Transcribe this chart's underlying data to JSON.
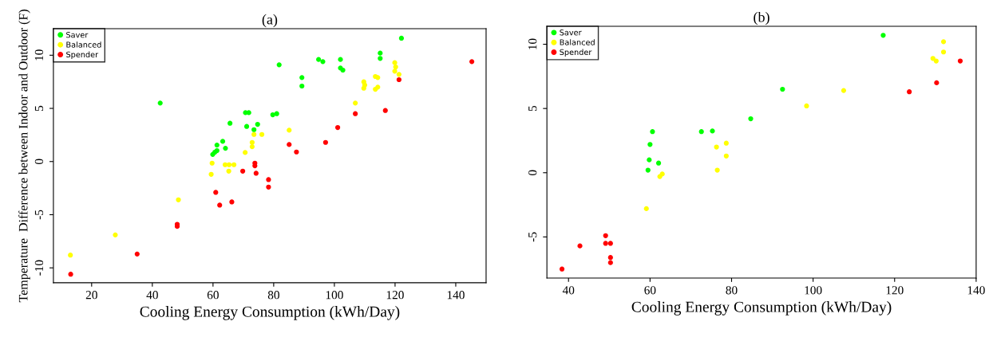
{
  "chart_data": [
    {
      "type": "scatter",
      "title": "(a)",
      "xlabel": "Cooling Energy Consumption (kWh/Day)",
      "ylabel": "Temperature  Difference between Indoor and Outdoor (F)",
      "xlim": [
        7.4,
        150
      ],
      "ylim": [
        -11.4,
        12.5
      ],
      "xticks": [
        20,
        40,
        60,
        80,
        100,
        120,
        140
      ],
      "yticks": [
        -10,
        -5,
        0,
        5,
        10
      ],
      "legend": "top left",
      "marker": "circle",
      "grid": false,
      "series": [
        {
          "name": "Saver",
          "color": "#00ff00",
          "x": [
            81.8,
            42.6,
            70.7,
            71.8,
            79.7,
            81,
            65.6,
            71.1,
            74.7,
            73.5,
            63.2,
            61.3,
            64.1,
            59.9,
            60.6,
            61.3,
            122.1,
            94.8,
            96.2,
            102,
            102,
            102.8,
            89.3,
            89.3,
            115.1,
            115.1
          ],
          "values": [
            9.1,
            5.5,
            4.6,
            4.6,
            4.4,
            4.5,
            3.6,
            3.3,
            3.5,
            3.0,
            1.9,
            1.55,
            1.25,
            0.67,
            0.88,
            1.03,
            11.6,
            9.6,
            9.4,
            9.6,
            8.8,
            8.6,
            7.9,
            7.1,
            10.2,
            9.7
          ]
        },
        {
          "name": "Balanced",
          "color": "#ffff00",
          "x": [
            13,
            27.8,
            48.6,
            59.7,
            59.4,
            64,
            65.3,
            66.9,
            65.2,
            70.6,
            72.9,
            72.9,
            73.5,
            76.1,
            85.1,
            106.9,
            109.7,
            110,
            109.7,
            113.5,
            114.3,
            113.5,
            114.3,
            119.9,
            120.2,
            119.9,
            121.3
          ],
          "values": [
            -8.8,
            -6.9,
            -3.6,
            -0.15,
            -1.2,
            -0.3,
            -0.3,
            -0.3,
            -0.9,
            0.85,
            1.8,
            1.4,
            2.55,
            2.55,
            2.95,
            5.5,
            7.5,
            7.2,
            6.9,
            8.0,
            7.9,
            6.8,
            7.0,
            9.3,
            8.9,
            8.5,
            8.2
          ]
        },
        {
          "name": "Spender",
          "color": "#ff0000",
          "x": [
            13.1,
            35,
            48.2,
            48.2,
            60.9,
            62.2,
            66.2,
            69.8,
            73.8,
            73.8,
            74.2,
            78.3,
            78.3,
            85.1,
            87.5,
            97.1,
            101.1,
            106.9,
            116.8,
            121.3,
            145.3
          ],
          "values": [
            -10.6,
            -8.7,
            -5.9,
            -6.1,
            -2.9,
            -4.1,
            -3.8,
            -0.9,
            -0.15,
            -0.4,
            -1.1,
            -1.7,
            -2.4,
            1.6,
            0.9,
            1.8,
            3.2,
            4.5,
            4.8,
            7.7,
            9.4
          ]
        }
      ]
    },
    {
      "type": "scatter",
      "title": "(b)",
      "xlabel": "Cooling Energy Consumption (kWh/Day)",
      "xlim": [
        34.7,
        140
      ],
      "ylim": [
        -8.2,
        11.4
      ],
      "xticks": [
        40,
        60,
        80,
        100,
        120,
        140
      ],
      "yticks": [
        -5,
        0,
        5,
        10
      ],
      "legend": "top left",
      "marker": "circle",
      "grid": false,
      "series": [
        {
          "name": "Saver",
          "color": "#00ff00",
          "x": [
            60.6,
            60,
            59.8,
            62.1,
            59.5,
            72.6,
            75.3,
            84.7,
            92.5,
            117.2
          ],
          "values": [
            3.2,
            2.2,
            1.0,
            0.75,
            0.2,
            3.2,
            3.25,
            4.2,
            6.5,
            10.7
          ]
        },
        {
          "name": "Balanced",
          "color": "#ffff00",
          "x": [
            59.1,
            62.4,
            63,
            76.3,
            78.7,
            78.7,
            76.5,
            98.4,
            107.5,
            129.4,
            130.2,
            132,
            132
          ],
          "values": [
            -2.8,
            -0.3,
            -0.1,
            2.0,
            2.3,
            1.3,
            0.2,
            5.2,
            6.4,
            8.9,
            8.7,
            10.2,
            9.4
          ]
        },
        {
          "name": "Spender",
          "color": "#ff0000",
          "x": [
            38.4,
            42.8,
            49.1,
            49.1,
            50.3,
            50.3,
            50.3,
            123.6,
            130.3,
            136.1
          ],
          "values": [
            -7.5,
            -5.7,
            -4.9,
            -5.5,
            -5.5,
            -6.6,
            -7.0,
            6.3,
            7.0,
            8.7
          ]
        }
      ]
    }
  ]
}
